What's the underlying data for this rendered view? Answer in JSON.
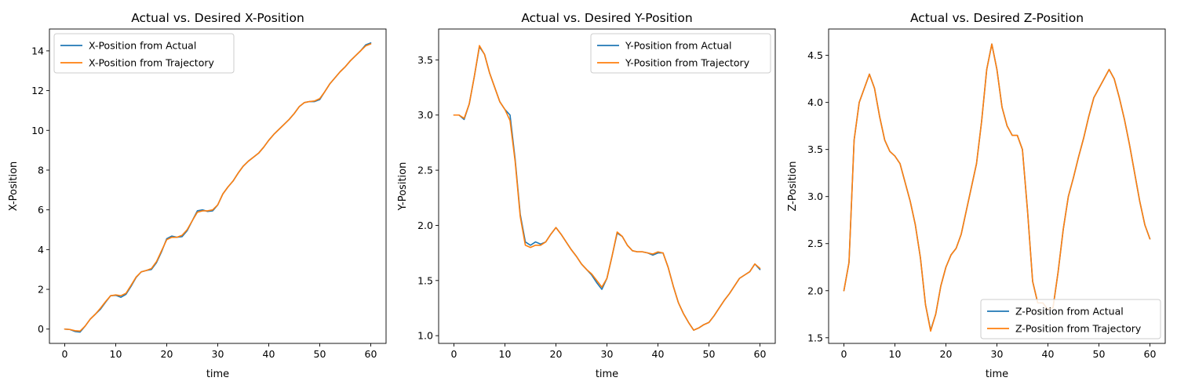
{
  "chart_data": [
    {
      "type": "line",
      "title": "Actual vs. Desired X-Position",
      "xlabel": "time",
      "ylabel": "X-Position",
      "xlim": [
        -3,
        63
      ],
      "ylim": [
        -0.72,
        15.1
      ],
      "xticks": [
        0,
        10,
        20,
        30,
        40,
        50,
        60
      ],
      "yticks": [
        0,
        2,
        4,
        6,
        8,
        10,
        12,
        14
      ],
      "legend_position": "upper-left",
      "series": [
        {
          "name": "X-Position from Actual",
          "color": "#1f77b4",
          "x": [
            0,
            1,
            2,
            3,
            4,
            5,
            6,
            7,
            8,
            9,
            10,
            11,
            12,
            13,
            14,
            15,
            16,
            17,
            18,
            19,
            20,
            21,
            22,
            23,
            24,
            25,
            26,
            27,
            28,
            29,
            30,
            31,
            32,
            33,
            34,
            35,
            36,
            37,
            38,
            39,
            40,
            41,
            42,
            43,
            44,
            45,
            46,
            47,
            48,
            49,
            50,
            51,
            52,
            53,
            54,
            55,
            56,
            57,
            58,
            59,
            60
          ],
          "y": [
            0.0,
            -0.02,
            -0.12,
            -0.15,
            0.15,
            0.5,
            0.75,
            1.0,
            1.35,
            1.68,
            1.7,
            1.6,
            1.75,
            2.15,
            2.6,
            2.88,
            2.95,
            3.0,
            3.35,
            3.9,
            4.55,
            4.68,
            4.62,
            4.65,
            4.95,
            5.45,
            5.95,
            6.0,
            5.92,
            5.95,
            6.25,
            6.8,
            7.15,
            7.45,
            7.85,
            8.2,
            8.45,
            8.65,
            8.85,
            9.15,
            9.5,
            9.8,
            10.05,
            10.3,
            10.55,
            10.85,
            11.2,
            11.4,
            11.45,
            11.45,
            11.55,
            11.95,
            12.35,
            12.65,
            12.95,
            13.2,
            13.5,
            13.75,
            14.0,
            14.3,
            14.4
          ]
        },
        {
          "name": "X-Position from Trajectory",
          "color": "#ff7f0e",
          "x": [
            0,
            1,
            2,
            3,
            4,
            5,
            6,
            7,
            8,
            9,
            10,
            11,
            12,
            13,
            14,
            15,
            16,
            17,
            18,
            19,
            20,
            21,
            22,
            23,
            24,
            25,
            26,
            27,
            28,
            29,
            30,
            31,
            32,
            33,
            34,
            35,
            36,
            37,
            38,
            39,
            40,
            41,
            42,
            43,
            44,
            45,
            46,
            47,
            48,
            49,
            50,
            51,
            52,
            53,
            54,
            55,
            56,
            57,
            58,
            59,
            60
          ],
          "y": [
            0.0,
            -0.02,
            -0.08,
            -0.1,
            0.15,
            0.5,
            0.75,
            1.05,
            1.38,
            1.68,
            1.72,
            1.68,
            1.8,
            2.2,
            2.62,
            2.88,
            2.95,
            3.05,
            3.4,
            3.95,
            4.5,
            4.62,
            4.62,
            4.72,
            5.0,
            5.45,
            5.88,
            5.95,
            5.95,
            6.0,
            6.25,
            6.8,
            7.15,
            7.45,
            7.85,
            8.2,
            8.45,
            8.65,
            8.85,
            9.15,
            9.5,
            9.8,
            10.05,
            10.3,
            10.55,
            10.85,
            11.2,
            11.4,
            11.45,
            11.48,
            11.6,
            11.95,
            12.35,
            12.65,
            12.95,
            13.2,
            13.5,
            13.75,
            14.0,
            14.25,
            14.35
          ]
        }
      ]
    },
    {
      "type": "line",
      "title": "Actual vs. Desired Y-Position",
      "xlabel": "time",
      "ylabel": "Y-Position",
      "xlim": [
        -3,
        63
      ],
      "ylim": [
        0.93,
        3.78
      ],
      "xticks": [
        0,
        10,
        20,
        30,
        40,
        50,
        60
      ],
      "yticks": [
        1.0,
        1.5,
        2.0,
        2.5,
        3.0,
        3.5
      ],
      "ytick_labels": [
        "1.0",
        "1.5",
        "2.0",
        "2.5",
        "3.0",
        "3.5"
      ],
      "legend_position": "upper-right",
      "series": [
        {
          "name": "Y-Position from Actual",
          "color": "#1f77b4",
          "x": [
            0,
            1,
            2,
            3,
            4,
            5,
            6,
            7,
            8,
            9,
            10,
            11,
            12,
            13,
            14,
            15,
            16,
            17,
            18,
            19,
            20,
            21,
            22,
            23,
            24,
            25,
            26,
            27,
            28,
            29,
            30,
            31,
            32,
            33,
            34,
            35,
            36,
            37,
            38,
            39,
            40,
            41,
            42,
            43,
            44,
            45,
            46,
            47,
            48,
            49,
            50,
            51,
            52,
            53,
            54,
            55,
            56,
            57,
            58,
            59,
            60
          ],
          "y": [
            3.0,
            3.0,
            2.96,
            3.1,
            3.35,
            3.62,
            3.55,
            3.38,
            3.25,
            3.12,
            3.05,
            3.0,
            2.6,
            2.1,
            1.85,
            1.82,
            1.85,
            1.83,
            1.85,
            1.92,
            1.98,
            1.92,
            1.85,
            1.78,
            1.72,
            1.65,
            1.6,
            1.55,
            1.48,
            1.42,
            1.52,
            1.72,
            1.93,
            1.9,
            1.82,
            1.77,
            1.76,
            1.76,
            1.75,
            1.73,
            1.75,
            1.75,
            1.62,
            1.45,
            1.3,
            1.2,
            1.12,
            1.05,
            1.07,
            1.1,
            1.12,
            1.18,
            1.25,
            1.32,
            1.38,
            1.45,
            1.52,
            1.55,
            1.58,
            1.65,
            1.6
          ]
        },
        {
          "name": "Y-Position from Trajectory",
          "color": "#ff7f0e",
          "x": [
            0,
            1,
            2,
            3,
            4,
            5,
            6,
            7,
            8,
            9,
            10,
            11,
            12,
            13,
            14,
            15,
            16,
            17,
            18,
            19,
            20,
            21,
            22,
            23,
            24,
            25,
            26,
            27,
            28,
            29,
            30,
            31,
            32,
            33,
            34,
            35,
            36,
            37,
            38,
            39,
            40,
            41,
            42,
            43,
            44,
            45,
            46,
            47,
            48,
            49,
            50,
            51,
            52,
            53,
            54,
            55,
            56,
            57,
            58,
            59,
            60
          ],
          "y": [
            3.0,
            3.0,
            2.97,
            3.1,
            3.35,
            3.63,
            3.55,
            3.38,
            3.25,
            3.12,
            3.05,
            2.95,
            2.58,
            2.08,
            1.82,
            1.8,
            1.82,
            1.82,
            1.85,
            1.92,
            1.98,
            1.92,
            1.85,
            1.78,
            1.72,
            1.65,
            1.6,
            1.56,
            1.5,
            1.44,
            1.52,
            1.72,
            1.94,
            1.9,
            1.82,
            1.77,
            1.76,
            1.76,
            1.75,
            1.74,
            1.76,
            1.75,
            1.62,
            1.45,
            1.3,
            1.2,
            1.12,
            1.05,
            1.07,
            1.1,
            1.12,
            1.18,
            1.25,
            1.32,
            1.38,
            1.45,
            1.52,
            1.55,
            1.58,
            1.65,
            1.61
          ]
        }
      ]
    },
    {
      "type": "line",
      "title": "Actual vs. Desired Z-Position",
      "xlabel": "time",
      "ylabel": "Z-Position",
      "xlim": [
        -3,
        63
      ],
      "ylim": [
        1.44,
        4.78
      ],
      "xticks": [
        0,
        10,
        20,
        30,
        40,
        50,
        60
      ],
      "yticks": [
        1.5,
        2.0,
        2.5,
        3.0,
        3.5,
        4.0,
        4.5
      ],
      "ytick_labels": [
        "1.5",
        "2.0",
        "2.5",
        "3.0",
        "3.5",
        "4.0",
        "4.5"
      ],
      "legend_position": "lower-right",
      "series": [
        {
          "name": "Z-Position from Actual",
          "color": "#1f77b4",
          "x": [
            0,
            1,
            2,
            3,
            4,
            5,
            6,
            7,
            8,
            9,
            10,
            11,
            12,
            13,
            14,
            15,
            16,
            17,
            18,
            19,
            20,
            21,
            22,
            23,
            24,
            25,
            26,
            27,
            28,
            29,
            30,
            31,
            32,
            33,
            34,
            35,
            36,
            37,
            38,
            39,
            40,
            41,
            42,
            43,
            44,
            45,
            46,
            47,
            48,
            49,
            50,
            51,
            52,
            53,
            54,
            55,
            56,
            57,
            58,
            59,
            60
          ],
          "y": [
            2.0,
            2.3,
            3.6,
            4.0,
            4.15,
            4.3,
            4.15,
            3.85,
            3.6,
            3.48,
            3.43,
            3.35,
            3.15,
            2.95,
            2.7,
            2.35,
            1.85,
            1.58,
            1.75,
            2.05,
            2.25,
            2.38,
            2.45,
            2.6,
            2.85,
            3.1,
            3.35,
            3.8,
            4.35,
            4.62,
            4.35,
            3.95,
            3.75,
            3.65,
            3.65,
            3.5,
            2.85,
            2.1,
            1.87,
            1.87,
            1.8,
            1.82,
            2.2,
            2.65,
            3.0,
            3.2,
            3.42,
            3.62,
            3.85,
            4.05,
            4.15,
            4.25,
            4.35,
            4.25,
            4.05,
            3.82,
            3.55,
            3.25,
            2.95,
            2.7,
            2.55
          ]
        },
        {
          "name": "Z-Position from Trajectory",
          "color": "#ff7f0e",
          "x": [
            0,
            1,
            2,
            3,
            4,
            5,
            6,
            7,
            8,
            9,
            10,
            11,
            12,
            13,
            14,
            15,
            16,
            17,
            18,
            19,
            20,
            21,
            22,
            23,
            24,
            25,
            26,
            27,
            28,
            29,
            30,
            31,
            32,
            33,
            34,
            35,
            36,
            37,
            38,
            39,
            40,
            41,
            42,
            43,
            44,
            45,
            46,
            47,
            48,
            49,
            50,
            51,
            52,
            53,
            54,
            55,
            56,
            57,
            58,
            59,
            60
          ],
          "y": [
            2.0,
            2.3,
            3.6,
            4.0,
            4.15,
            4.3,
            4.15,
            3.85,
            3.6,
            3.48,
            3.43,
            3.35,
            3.15,
            2.95,
            2.7,
            2.35,
            1.85,
            1.57,
            1.75,
            2.05,
            2.25,
            2.38,
            2.45,
            2.6,
            2.85,
            3.1,
            3.35,
            3.8,
            4.35,
            4.62,
            4.35,
            3.95,
            3.75,
            3.65,
            3.65,
            3.5,
            2.85,
            2.1,
            1.87,
            1.87,
            1.8,
            1.82,
            2.2,
            2.65,
            3.0,
            3.2,
            3.42,
            3.62,
            3.85,
            4.05,
            4.15,
            4.25,
            4.35,
            4.25,
            4.05,
            3.82,
            3.55,
            3.25,
            2.95,
            2.7,
            2.55
          ]
        }
      ]
    }
  ]
}
